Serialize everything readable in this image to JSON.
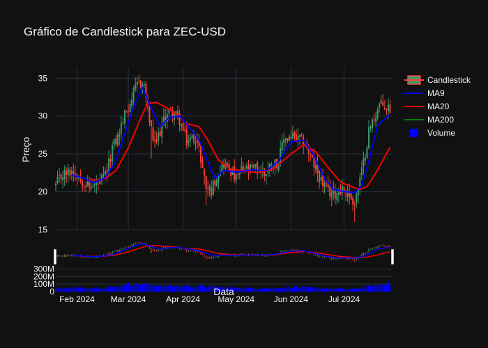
{
  "chart_data": {
    "type": "candlestick",
    "title": "Gráfico de Candlestick para ZEC-USD",
    "ylabel": "Preço",
    "xlabel": "Data",
    "x_range": [
      "2024-01-20",
      "2024-07-28"
    ],
    "ylim": [
      15,
      36.5
    ],
    "y_ticks": [
      15,
      20,
      25,
      30,
      35
    ],
    "x_ticks": [
      {
        "date": "2024-02-01",
        "label": "Feb 2024"
      },
      {
        "date": "2024-03-01",
        "label": "Mar 2024"
      },
      {
        "date": "2024-04-01",
        "label": "Apr 2024"
      },
      {
        "date": "2024-05-01",
        "label": "May 2024"
      },
      {
        "date": "2024-06-01",
        "label": "Jun 2024"
      },
      {
        "date": "2024-07-01",
        "label": "Jul 2024"
      }
    ],
    "volume_ylim": [
      0,
      360000000
    ],
    "volume_ticks": [
      {
        "value": 0,
        "label": "0"
      },
      {
        "value": 100000000,
        "label": "100M"
      },
      {
        "value": 200000000,
        "label": "200M"
      },
      {
        "value": 300000000,
        "label": "300M"
      }
    ],
    "close_keypoints": [
      [
        "2024-01-20",
        20.8
      ],
      [
        "2024-01-24",
        22.3
      ],
      [
        "2024-01-30",
        22.8
      ],
      [
        "2024-02-03",
        21.8
      ],
      [
        "2024-02-08",
        20.6
      ],
      [
        "2024-02-14",
        21.1
      ],
      [
        "2024-02-18",
        22.6
      ],
      [
        "2024-02-21",
        25.8
      ],
      [
        "2024-02-24",
        27.2
      ],
      [
        "2024-02-28",
        30.2
      ],
      [
        "2024-03-03",
        32.4
      ],
      [
        "2024-03-07",
        34.5
      ],
      [
        "2024-03-10",
        34.0
      ],
      [
        "2024-03-12",
        31.0
      ],
      [
        "2024-03-14",
        28.0
      ],
      [
        "2024-03-16",
        26.0
      ],
      [
        "2024-03-19",
        28.0
      ],
      [
        "2024-03-23",
        30.6
      ],
      [
        "2024-03-27",
        30.3
      ],
      [
        "2024-03-30",
        29.4
      ],
      [
        "2024-04-03",
        26.6
      ],
      [
        "2024-04-08",
        27.3
      ],
      [
        "2024-04-11",
        24.5
      ],
      [
        "2024-04-14",
        20.5
      ],
      [
        "2024-04-17",
        20.2
      ],
      [
        "2024-04-20",
        22.2
      ],
      [
        "2024-04-24",
        23.8
      ],
      [
        "2024-04-28",
        22.8
      ],
      [
        "2024-05-01",
        21.6
      ],
      [
        "2024-05-04",
        22.9
      ],
      [
        "2024-05-08",
        22.8
      ],
      [
        "2024-05-13",
        23.2
      ],
      [
        "2024-05-17",
        22.4
      ],
      [
        "2024-05-21",
        23.7
      ],
      [
        "2024-05-25",
        24.0
      ],
      [
        "2024-05-28",
        27.0
      ],
      [
        "2024-06-02",
        27.2
      ],
      [
        "2024-06-06",
        26.7
      ],
      [
        "2024-06-09",
        26.6
      ],
      [
        "2024-06-12",
        24.5
      ],
      [
        "2024-06-15",
        23.0
      ],
      [
        "2024-06-18",
        21.5
      ],
      [
        "2024-06-22",
        20.0
      ],
      [
        "2024-06-26",
        19.8
      ],
      [
        "2024-06-30",
        20.5
      ],
      [
        "2024-07-04",
        19.5
      ],
      [
        "2024-07-07",
        18.6
      ],
      [
        "2024-07-09",
        20.5
      ],
      [
        "2024-07-12",
        23.8
      ],
      [
        "2024-07-15",
        28.0
      ],
      [
        "2024-07-18",
        29.8
      ],
      [
        "2024-07-21",
        31.5
      ],
      [
        "2024-07-24",
        31.2
      ],
      [
        "2024-07-27",
        31.0
      ]
    ],
    "ma20_keypoints": [
      [
        "2024-02-08",
        21.6
      ],
      [
        "2024-02-16",
        21.6
      ],
      [
        "2024-02-23",
        22.8
      ],
      [
        "2024-03-01",
        25.8
      ],
      [
        "2024-03-08",
        29.7
      ],
      [
        "2024-03-12",
        31.7
      ],
      [
        "2024-03-17",
        31.8
      ],
      [
        "2024-03-22",
        31.2
      ],
      [
        "2024-03-28",
        30.3
      ],
      [
        "2024-04-03",
        29.0
      ],
      [
        "2024-04-10",
        28.6
      ],
      [
        "2024-04-15",
        26.8
      ],
      [
        "2024-04-21",
        24.2
      ],
      [
        "2024-04-28",
        23.0
      ],
      [
        "2024-05-05",
        22.8
      ],
      [
        "2024-05-13",
        22.5
      ],
      [
        "2024-05-22",
        23.0
      ],
      [
        "2024-06-01",
        25.0
      ],
      [
        "2024-06-08",
        26.2
      ],
      [
        "2024-06-15",
        25.3
      ],
      [
        "2024-06-22",
        23.2
      ],
      [
        "2024-06-29",
        21.3
      ],
      [
        "2024-07-06",
        20.6
      ],
      [
        "2024-07-10",
        20.3
      ],
      [
        "2024-07-14",
        20.7
      ],
      [
        "2024-07-19",
        22.5
      ],
      [
        "2024-07-27",
        25.9
      ]
    ],
    "ma9_keypoints": [
      [
        "2024-01-29",
        22.2
      ],
      [
        "2024-02-05",
        21.8
      ],
      [
        "2024-02-10",
        21.2
      ],
      [
        "2024-02-16",
        21.7
      ],
      [
        "2024-02-22",
        23.6
      ],
      [
        "2024-02-28",
        27.6
      ],
      [
        "2024-03-04",
        31.2
      ],
      [
        "2024-03-09",
        33.8
      ],
      [
        "2024-03-14",
        31.0
      ],
      [
        "2024-03-19",
        28.6
      ],
      [
        "2024-03-24",
        29.8
      ],
      [
        "2024-03-30",
        30.0
      ],
      [
        "2024-04-05",
        28.4
      ],
      [
        "2024-04-10",
        26.9
      ],
      [
        "2024-04-14",
        24.5
      ],
      [
        "2024-04-19",
        21.8
      ],
      [
        "2024-04-24",
        22.8
      ],
      [
        "2024-05-02",
        22.6
      ],
      [
        "2024-05-10",
        22.9
      ],
      [
        "2024-05-18",
        22.8
      ],
      [
        "2024-05-25",
        24.0
      ],
      [
        "2024-06-01",
        26.6
      ],
      [
        "2024-06-08",
        26.8
      ],
      [
        "2024-06-14",
        24.8
      ],
      [
        "2024-06-20",
        21.8
      ],
      [
        "2024-06-25",
        20.3
      ],
      [
        "2024-07-02",
        20.0
      ],
      [
        "2024-07-07",
        19.9
      ],
      [
        "2024-07-11",
        20.8
      ],
      [
        "2024-07-15",
        24.0
      ],
      [
        "2024-07-20",
        28.8
      ],
      [
        "2024-07-27",
        30.2
      ]
    ],
    "ma200": [],
    "volume_level_millions": [
      [
        "2024-01-20",
        48
      ],
      [
        "2024-02-18",
        52
      ],
      [
        "2024-02-25",
        75
      ],
      [
        "2024-03-01",
        95
      ],
      [
        "2024-03-08",
        105
      ],
      [
        "2024-03-15",
        85
      ],
      [
        "2024-03-25",
        75
      ],
      [
        "2024-04-05",
        72
      ],
      [
        "2024-04-15",
        70
      ],
      [
        "2024-04-25",
        55
      ],
      [
        "2024-05-10",
        45
      ],
      [
        "2024-05-25",
        50
      ],
      [
        "2024-06-02",
        62
      ],
      [
        "2024-06-08",
        58
      ],
      [
        "2024-06-15",
        48
      ],
      [
        "2024-06-25",
        38
      ],
      [
        "2024-07-05",
        35
      ],
      [
        "2024-07-12",
        55
      ],
      [
        "2024-07-18",
        80
      ],
      [
        "2024-07-24",
        95
      ],
      [
        "2024-07-27",
        100
      ]
    ],
    "volume_spike": {
      "date": "2024-07-26",
      "value_millions": 130
    },
    "legend": {
      "placement": "top-right",
      "entries": [
        {
          "name": "Candlestick",
          "kind": "candle"
        },
        {
          "name": "MA9",
          "kind": "line",
          "color": "#0000ff"
        },
        {
          "name": "MA20",
          "kind": "line",
          "color": "#ff0000"
        },
        {
          "name": "MA200",
          "kind": "line",
          "color": "#008000"
        },
        {
          "name": "Volume",
          "kind": "bar",
          "color": "#0000ff"
        }
      ]
    },
    "colors": {
      "increasing": "#3d9970",
      "decreasing": "#ff4136",
      "ma9": "#0000ff",
      "ma20": "#ff0000",
      "ma200": "#008000",
      "volume": "#0000ff",
      "grid": "#283442",
      "background": "#111111",
      "text": "#f2f5fa"
    },
    "grid": true,
    "rangeslider": true
  }
}
